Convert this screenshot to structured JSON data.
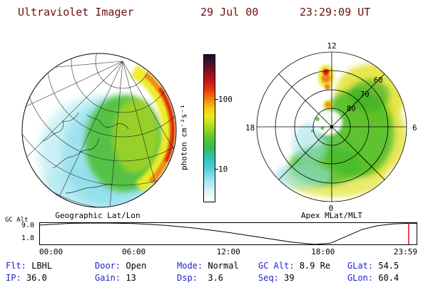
{
  "header": {
    "title": "Ultraviolet Imager",
    "date": "29 Jul 00",
    "time": "23:29:09 UT"
  },
  "colorbar": {
    "label": "photon cm⁻²s⁻¹",
    "tick_top": "100",
    "tick_bottom": "10",
    "stops": [
      "#12102e 0%",
      "#55102a 7%",
      "#8c1020 12%",
      "#c41616 18%",
      "#e23c10 24%",
      "#ee8012 30%",
      "#f2c616 36%",
      "#ecec20 42%",
      "#aada20 49%",
      "#62c62a 56%",
      "#34bc58 63%",
      "#2ec4ae 70%",
      "#48cede 77%",
      "#9ae4f2 85%",
      "#d6f2fa 92%",
      "#ffffff 100%"
    ]
  },
  "panels": {
    "geographic": {
      "caption": "Geographic Lat/Lon"
    },
    "apex": {
      "caption": "Apex MLat/MLT",
      "mlt_top": "12",
      "mlt_left": "18",
      "mlt_right": "6",
      "mlt_bottom": "0",
      "ring_60": "60",
      "ring_70": "70",
      "ring_80": "80"
    }
  },
  "altitude_chart": {
    "axis_label": "GC Alt",
    "y_top": "9.0",
    "y_bottom": "1.8",
    "x_ticks": [
      "00:00",
      "06:00",
      "12:00",
      "18:00",
      "23:59"
    ]
  },
  "status": {
    "rows": [
      [
        {
          "label": "Flt:",
          "value": "LBHL"
        },
        {
          "label": "Door:",
          "value": "Open"
        },
        {
          "label": "Mode:",
          "value": "Normal"
        },
        {
          "label": "GC Alt:",
          "value": "8.9 Re"
        },
        {
          "label": "GLat:",
          "value": "54.5"
        }
      ],
      [
        {
          "label": "IP:",
          "value": "36.0"
        },
        {
          "label": "Gain:",
          "value": "13"
        },
        {
          "label": "Dsp:",
          "value": "3.6"
        },
        {
          "label": "Seq:",
          "value": "39"
        },
        {
          "label": "GLon:",
          "value": "60.4"
        }
      ]
    ]
  },
  "colors": {
    "header_text": "#6b1010",
    "status_label": "#2222cc",
    "text": "#000000",
    "marker": "#e00000",
    "background": "#ffffff"
  },
  "chart_data": [
    {
      "type": "line",
      "title": "GC Alt (Re) vs UT",
      "ylabel": "GC Alt",
      "ylim": [
        1.8,
        9.0
      ],
      "x_max": 23.983,
      "x_hours": [
        0,
        2,
        4,
        6,
        8,
        10,
        12,
        14,
        16,
        17.5,
        18.5,
        19.5,
        20.5,
        21.5,
        22.5,
        23.5,
        23.98
      ],
      "values": [
        8.3,
        8.9,
        9.0,
        8.8,
        8.2,
        7.2,
        5.8,
        4.2,
        2.6,
        1.8,
        2.2,
        4.5,
        6.8,
        8.1,
        8.7,
        8.9,
        8.9
      ],
      "x_tick_hours": [
        0,
        6,
        12,
        18,
        23.983
      ],
      "x_tick_labels": [
        "00:00",
        "06:00",
        "12:00",
        "18:00",
        "23:59"
      ],
      "current_time_hours": 23.48,
      "marker_color": "#e00000"
    },
    {
      "type": "heatmap",
      "title": "UV intensity color scale",
      "units": "photon cm⁻²s⁻¹",
      "scale": "log",
      "ticks": [
        10,
        100
      ]
    }
  ]
}
